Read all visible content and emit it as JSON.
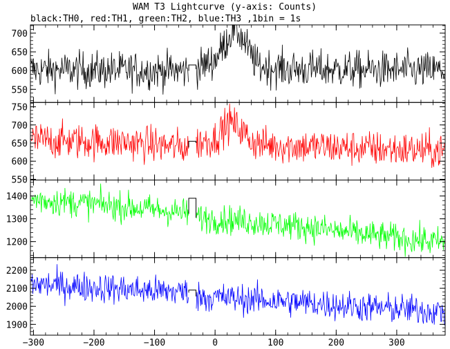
{
  "chart_data": {
    "type": "line",
    "title": "WAM T3 Lightcurve (y-axis: Counts)",
    "subtitle": "black:TH0, red:TH1, green:TH2, blue:TH3 ,1bin = 1s",
    "xlim": [
      -305,
      380
    ],
    "x_ticks": [
      -300,
      -200,
      -100,
      0,
      100,
      200,
      300
    ],
    "gap": [
      -44,
      -31
    ],
    "series": [
      {
        "name": "TH0",
        "color": "#000000",
        "ylim": [
          515,
          722
        ],
        "y_ticks": [
          550,
          600,
          650,
          700
        ],
        "noise": 25,
        "points": [
          [
            -304,
            602
          ],
          [
            -45,
            600
          ],
          [
            -31,
            604
          ],
          [
            0,
            630
          ],
          [
            15,
            668
          ],
          [
            30,
            712
          ],
          [
            40,
            700
          ],
          [
            55,
            655
          ],
          [
            70,
            612
          ],
          [
            120,
            604
          ],
          [
            380,
            600
          ]
        ],
        "gap_level": 615
      },
      {
        "name": "TH1",
        "color": "#ff0000",
        "ylim": [
          548,
          762
        ],
        "y_ticks": [
          550,
          600,
          650,
          700,
          750
        ],
        "noise": 25,
        "points": [
          [
            -304,
            658
          ],
          [
            -150,
            652
          ],
          [
            -45,
            638
          ],
          [
            -31,
            650
          ],
          [
            0,
            662
          ],
          [
            10,
            685
          ],
          [
            25,
            708
          ],
          [
            40,
            690
          ],
          [
            60,
            655
          ],
          [
            80,
            645
          ],
          [
            200,
            638
          ],
          [
            300,
            632
          ],
          [
            380,
            628
          ]
        ],
        "gap_level": 655
      },
      {
        "name": "TH2",
        "color": "#00ff00",
        "ylim": [
          1130,
          1470
        ],
        "y_ticks": [
          1200,
          1300,
          1400
        ],
        "noise": 32,
        "points": [
          [
            -304,
            1385
          ],
          [
            -200,
            1365
          ],
          [
            -100,
            1340
          ],
          [
            -45,
            1325
          ],
          [
            -31,
            1305
          ],
          [
            50,
            1290
          ],
          [
            150,
            1265
          ],
          [
            250,
            1230
          ],
          [
            380,
            1195
          ]
        ],
        "gap_level": 1390
      },
      {
        "name": "TH3",
        "color": "#0000ff",
        "ylim": [
          1840,
          2270
        ],
        "y_ticks": [
          1900,
          2000,
          2100,
          2200
        ],
        "noise": 42,
        "points": [
          [
            -304,
            2125
          ],
          [
            -200,
            2105
          ],
          [
            -100,
            2085
          ],
          [
            -45,
            2080
          ],
          [
            -31,
            2055
          ],
          [
            50,
            2040
          ],
          [
            150,
            2020
          ],
          [
            250,
            1995
          ],
          [
            380,
            1970
          ]
        ],
        "gap_level": 2090
      }
    ]
  }
}
